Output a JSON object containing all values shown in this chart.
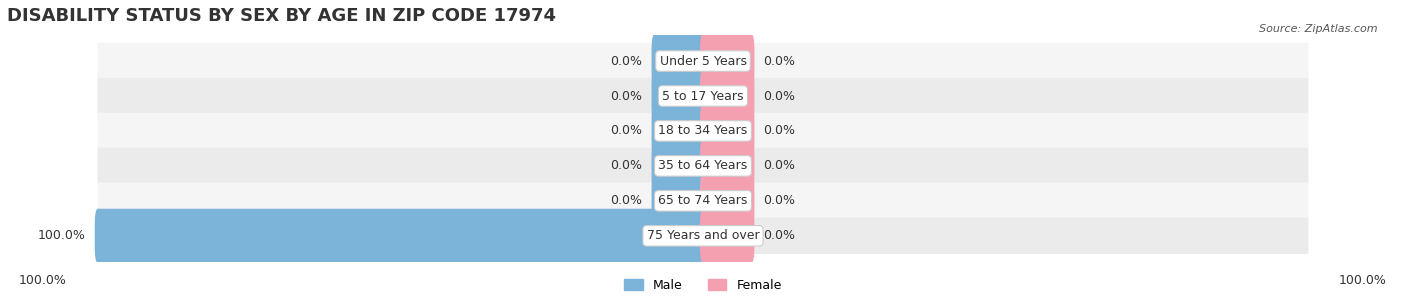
{
  "title": "DISABILITY STATUS BY SEX BY AGE IN ZIP CODE 17974",
  "source": "Source: ZipAtlas.com",
  "categories": [
    "Under 5 Years",
    "5 to 17 Years",
    "18 to 34 Years",
    "35 to 64 Years",
    "65 to 74 Years",
    "75 Years and over"
  ],
  "male_values": [
    0.0,
    0.0,
    0.0,
    0.0,
    0.0,
    100.0
  ],
  "female_values": [
    0.0,
    0.0,
    0.0,
    0.0,
    0.0,
    0.0
  ],
  "male_color": "#7bb3d9",
  "female_color": "#f4a0b0",
  "bar_bg_color": "#efefef",
  "row_bg_colors": [
    "#f5f5f5",
    "#ebebeb"
  ],
  "max_value": 100.0,
  "axis_label_left": "100.0%",
  "axis_label_right": "100.0%",
  "legend_male": "Male",
  "legend_female": "Female",
  "title_fontsize": 13,
  "label_fontsize": 9,
  "tick_fontsize": 9
}
